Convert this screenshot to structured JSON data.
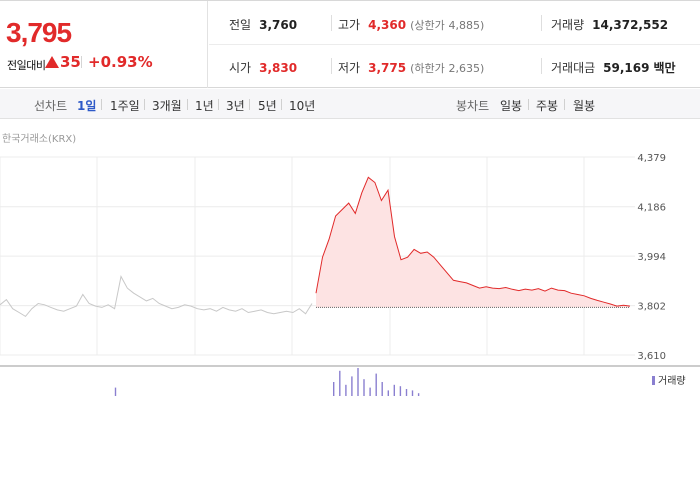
{
  "quote": {
    "price": "3,795",
    "change_label": "전일대비",
    "change": "35",
    "change_pct": "+0.93%",
    "direction": "up"
  },
  "stats": {
    "prev_close": {
      "label": "전일",
      "value": "3,760"
    },
    "high": {
      "label": "고가",
      "value": "4,360",
      "limit_label": "(상한가",
      "limit": "4,885)"
    },
    "volume": {
      "label": "거래량",
      "value": "14,372,552"
    },
    "open": {
      "label": "시가",
      "value": "3,830"
    },
    "low": {
      "label": "저가",
      "value": "3,775",
      "limit_label": "(하한가",
      "limit": "2,635)"
    },
    "turnover": {
      "label": "거래대금",
      "value": "59,169",
      "unit": "백만"
    }
  },
  "tabs": {
    "line_header": "선차트",
    "line": [
      "1일",
      "1주일",
      "3개월",
      "1년",
      "3년",
      "5년",
      "10년"
    ],
    "candle_header": "봉차트",
    "candle": [
      "일봉",
      "주봉",
      "월봉"
    ],
    "active": "1일"
  },
  "chart": {
    "source": "한국거래소(KRX)",
    "y_ticks": [
      "4,379",
      "4,186",
      "3,994",
      "3,802",
      "3,610"
    ],
    "volume_legend": "거래량"
  },
  "colors": {
    "up": "#e12a2a",
    "active_tab": "#2d59c8",
    "prev_line": "#cccccc",
    "volume_bar": "#8a7fd0"
  },
  "chart_data": {
    "type": "line",
    "ylim": [
      3610,
      4379
    ],
    "reference_price": 3795,
    "series": [
      {
        "values": [
          3805,
          3825,
          3790,
          3775,
          3760,
          3790,
          3810,
          3805,
          3795,
          3785,
          3780,
          3790,
          3800,
          3845,
          3810,
          3800,
          3795,
          3805,
          3790,
          3915,
          3870,
          3850,
          3835,
          3820,
          3830,
          3810,
          3800,
          3790,
          3795,
          3805,
          3800,
          3790,
          3785,
          3790,
          3780,
          3795,
          3785,
          3780,
          3790,
          3775,
          3780,
          3785,
          3775,
          3770,
          3775,
          3780,
          3775,
          3790,
          3770,
          3810
        ]
      },
      {
        "values": [
          3850,
          3990,
          4060,
          4150,
          4175,
          4200,
          4160,
          4240,
          4300,
          4280,
          4210,
          4250,
          4070,
          3980,
          3990,
          4020,
          4005,
          4010,
          3990,
          3960,
          3930,
          3900,
          3895,
          3890,
          3880,
          3870,
          3875,
          3870,
          3868,
          3872,
          3865,
          3860,
          3866,
          3862,
          3868,
          3858,
          3870,
          3862,
          3860,
          3850,
          3845,
          3840,
          3830,
          3822,
          3815,
          3808,
          3800,
          3803,
          3800
        ]
      }
    ],
    "volume": [
      0,
      0,
      0,
      0,
      0,
      0,
      0,
      0,
      0,
      0,
      0,
      0,
      0,
      0,
      0.3,
      0,
      0,
      0,
      0,
      0,
      0,
      0,
      0,
      0,
      0,
      0,
      0,
      0,
      0,
      0,
      0,
      0,
      0,
      0,
      0,
      0,
      0,
      0,
      0,
      0,
      0,
      0,
      0,
      0,
      0,
      0,
      0,
      0,
      0,
      0,
      0.5,
      0.9,
      0.4,
      0.7,
      1.0,
      0.6,
      0.3,
      0.8,
      0.5,
      0.2,
      0.4,
      0.35,
      0.25,
      0.2,
      0.1,
      0,
      0,
      0,
      0,
      0,
      0,
      0,
      0,
      0,
      0,
      0,
      0,
      0,
      0,
      0,
      0,
      0,
      0,
      0,
      0,
      0,
      0,
      0,
      0,
      0,
      0,
      0,
      0,
      0,
      0,
      0,
      0,
      0,
      0
    ]
  }
}
